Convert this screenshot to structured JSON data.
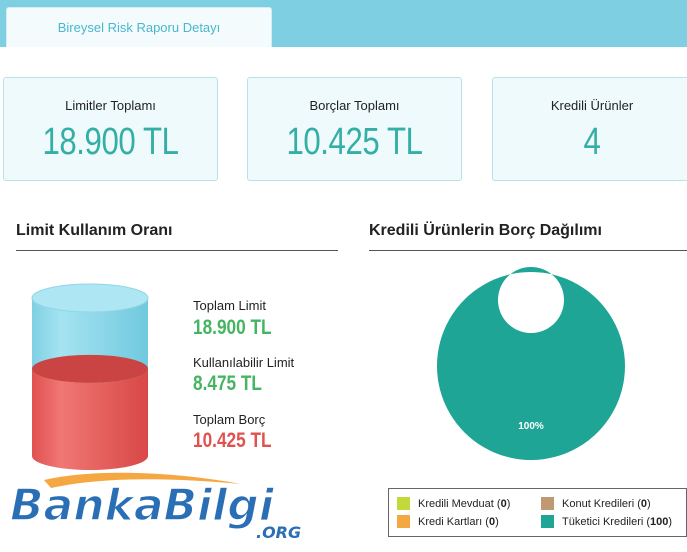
{
  "tab": {
    "label": "Bireysel Risk Raporu Detayı"
  },
  "summary": [
    {
      "label": "Limitler Toplamı",
      "value": "18.900 TL"
    },
    {
      "label": "Borçlar Toplamı",
      "value": "10.425 TL"
    },
    {
      "label": "Kredili Ürünler",
      "value": "4"
    }
  ],
  "limit_section": {
    "title": "Limit Kullanım Oranı",
    "used_fraction": 0.5516,
    "legend": [
      {
        "label": "Toplam Limit",
        "value": "18.900 TL",
        "color": "#45b562"
      },
      {
        "label": "Kullanılabilir Limit",
        "value": "8.475 TL",
        "color": "#45b562"
      },
      {
        "label": "Toplam Borç",
        "value": "10.425 TL",
        "color": "#e0514f"
      }
    ],
    "colors": {
      "available": "#8dd8ea",
      "debt": "#e0514f"
    }
  },
  "debt_section": {
    "title": "Kredili Ürünlerin Borç Dağılımı",
    "slice_label": "100%",
    "legend": [
      {
        "label": "Kredili Mevduat",
        "count": "0",
        "color": "#c3d93a"
      },
      {
        "label": "Konut Kredileri",
        "count": "0",
        "color": "#c09872"
      },
      {
        "label": "Kredi Kartları",
        "count": "0",
        "color": "#f5a742"
      },
      {
        "label": "Tüketici Kredileri",
        "count": "100",
        "color": "#1ea595"
      }
    ]
  },
  "chart_data": {
    "type": "pie",
    "title": "Kredili Ürünlerin Borç Dağılımı",
    "categories": [
      "Kredili Mevduat",
      "Kredi Kartları",
      "Konut Kredileri",
      "Tüketici Kredileri"
    ],
    "values": [
      0,
      0,
      0,
      100
    ],
    "colors": [
      "#c3d93a",
      "#f5a742",
      "#c09872",
      "#1ea595"
    ],
    "donut": true,
    "legend": "bottom-right"
  },
  "logo": {
    "text_main": "BankaBilgi",
    "text_sub": ".ORG"
  }
}
